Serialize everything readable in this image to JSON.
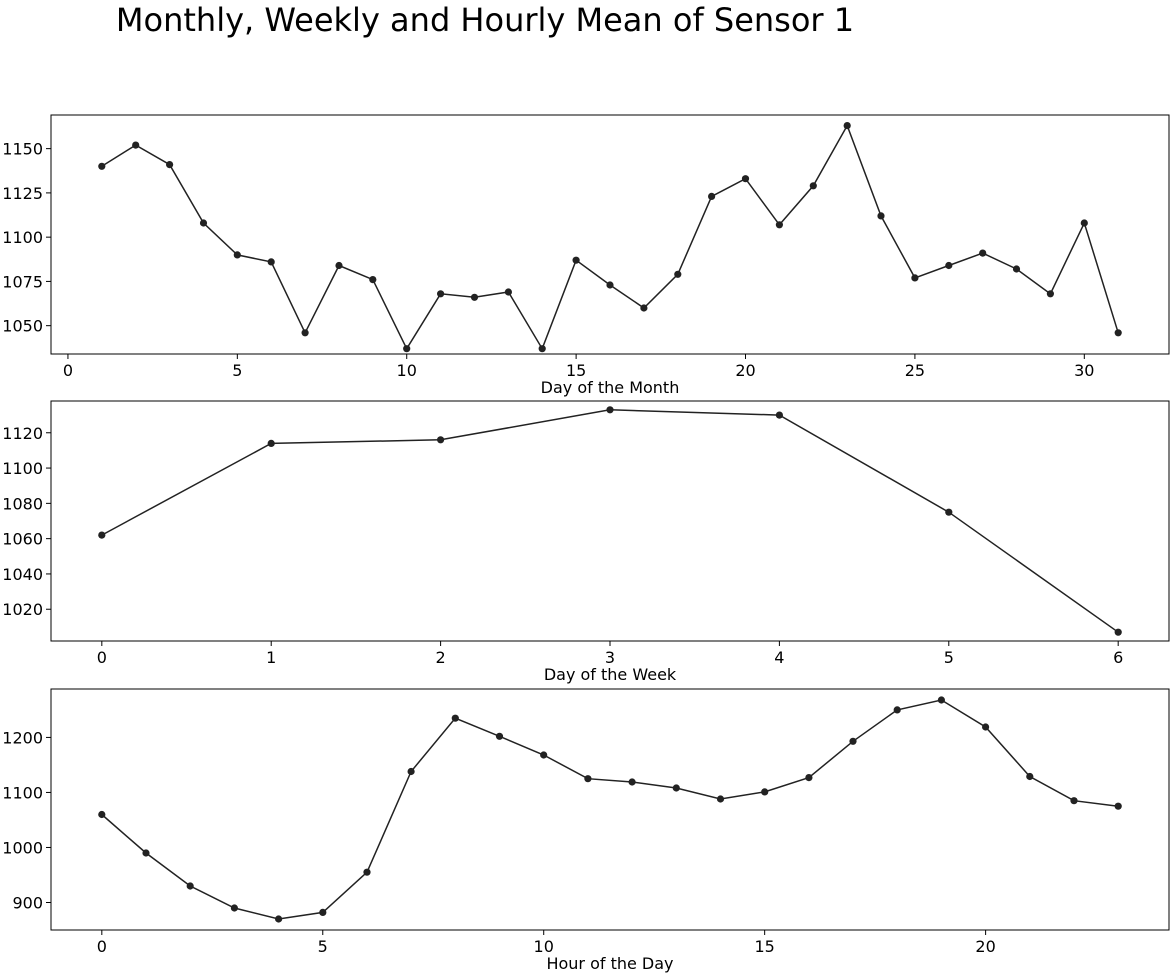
{
  "figure": {
    "title": "Monthly, Weekly and Hourly Mean of Sensor 1",
    "line_color": "#222222",
    "marker_color": "#222222",
    "grid": false
  },
  "chart_data": [
    {
      "type": "line",
      "xlabel": "Day of the Month",
      "ylabel": "",
      "xlim": [
        -0.5,
        32.5
      ],
      "ylim": [
        1034,
        1169
      ],
      "xticks": [
        0,
        5,
        10,
        15,
        20,
        25,
        30
      ],
      "yticks": [
        1050,
        1075,
        1100,
        1125,
        1150
      ],
      "x": [
        1,
        2,
        3,
        4,
        5,
        6,
        7,
        8,
        9,
        10,
        11,
        12,
        13,
        14,
        15,
        16,
        17,
        18,
        19,
        20,
        21,
        22,
        23,
        24,
        25,
        26,
        27,
        28,
        29,
        30,
        31
      ],
      "values": [
        1140,
        1152,
        1141,
        1108,
        1090,
        1086,
        1046,
        1084,
        1076,
        1037,
        1068,
        1066,
        1069,
        1037,
        1087,
        1073,
        1060,
        1079,
        1123,
        1133,
        1107,
        1129,
        1163,
        1112,
        1077,
        1084,
        1091,
        1082,
        1068,
        1108,
        1046
      ]
    },
    {
      "type": "line",
      "xlabel": "Day of the Week",
      "ylabel": "",
      "xlim": [
        -0.3,
        6.3
      ],
      "ylim": [
        1002,
        1138
      ],
      "xticks": [
        0,
        1,
        2,
        3,
        4,
        5,
        6
      ],
      "yticks": [
        1020,
        1040,
        1060,
        1080,
        1100,
        1120
      ],
      "x": [
        0,
        1,
        2,
        3,
        4,
        5,
        6
      ],
      "values": [
        1062,
        1114,
        1116,
        1133,
        1130,
        1075,
        1007
      ]
    },
    {
      "type": "line",
      "xlabel": "Hour of the Day",
      "ylabel": "",
      "xlim": [
        -1.15,
        24.15
      ],
      "ylim": [
        850,
        1288
      ],
      "xticks": [
        0,
        5,
        10,
        15,
        20
      ],
      "yticks": [
        900,
        1000,
        1100,
        1200
      ],
      "x": [
        0,
        1,
        2,
        3,
        4,
        5,
        6,
        7,
        8,
        9,
        10,
        11,
        12,
        13,
        14,
        15,
        16,
        17,
        18,
        19,
        20,
        21,
        22,
        23
      ],
      "values": [
        1060,
        990,
        930,
        890,
        870,
        882,
        955,
        1138,
        1235,
        1202,
        1168,
        1125,
        1119,
        1108,
        1088,
        1101,
        1127,
        1193,
        1250,
        1268,
        1219,
        1129,
        1085,
        1075
      ]
    }
  ]
}
